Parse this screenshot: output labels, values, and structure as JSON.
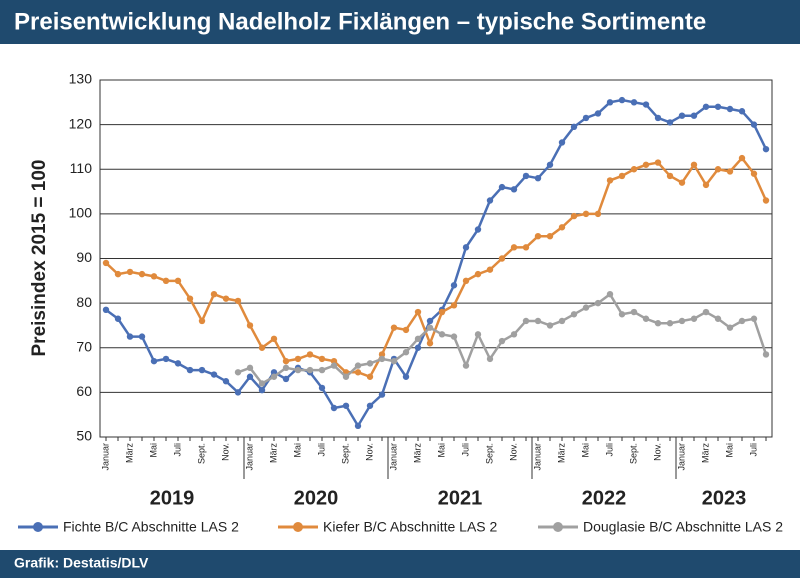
{
  "chart_data": {
    "type": "line",
    "title": "Preisentwicklung Nadelholz Fixlängen – typische Sortimente",
    "ylabel": "Preisindex 2015 = 100",
    "source": "Grafik: Destatis/DLV",
    "categories": [
      "Januar",
      null,
      "März",
      null,
      "Mai",
      null,
      "Juli",
      null,
      "Sept.",
      null,
      "Nov.",
      null,
      "Januar",
      null,
      "März",
      null,
      "Mai",
      null,
      "Juli",
      null,
      "Sept.",
      null,
      "Nov.",
      null,
      "Januar",
      null,
      "März",
      null,
      "Mai",
      null,
      "Juli",
      null,
      "Sept.",
      null,
      "Nov.",
      null,
      "Januar",
      null,
      "März",
      null,
      "Mai",
      null,
      "Juli",
      null,
      "Sept.",
      null,
      "Nov.",
      null,
      "Januar",
      null,
      "März",
      null,
      "Mai",
      null,
      "Juli",
      null
    ],
    "years": [
      "2019",
      "2020",
      "2021",
      "2022",
      "2023"
    ],
    "series": [
      {
        "name": "Fichte B/C Abschnitte LAS 2",
        "color": "#4a6fb5",
        "values": [
          78.5,
          76.5,
          72.5,
          72.5,
          67,
          67.5,
          66.5,
          65,
          65,
          64,
          62.5,
          60,
          63.5,
          60.5,
          64.5,
          63,
          65.5,
          64.5,
          61,
          56.5,
          57,
          52.5,
          57,
          59.5,
          67.5,
          63.5,
          70,
          76,
          78.5,
          84,
          92.5,
          96.5,
          103,
          106,
          105.5,
          108.5,
          108,
          111,
          116,
          119.5,
          121.5,
          122.5,
          125,
          125.5,
          125,
          124.5,
          121.5,
          120.5,
          122,
          122,
          124,
          124,
          123.5,
          123,
          120,
          114.5
        ]
      },
      {
        "name": "Kiefer B/C Abschnitte LAS 2",
        "color": "#e08a3c",
        "values": [
          89,
          86.5,
          87,
          86.5,
          86,
          85,
          85,
          81,
          76,
          82,
          81,
          80.5,
          75,
          70,
          72,
          67,
          67.5,
          68.5,
          67.5,
          67,
          64.5,
          64.5,
          63.5,
          68.5,
          74.5,
          74,
          78,
          71,
          78,
          79.5,
          85,
          86.5,
          87.5,
          90,
          92.5,
          92.5,
          95,
          95,
          97,
          99.5,
          100,
          100,
          107.5,
          108.5,
          110,
          111,
          111.5,
          108.5,
          107,
          111,
          106.5,
          110,
          109.5,
          112.5,
          109,
          103
        ]
      },
      {
        "name": "Douglasie B/C Abschnitte LAS 2",
        "color": "#a0a0a0",
        "values": [
          null,
          null,
          null,
          null,
          null,
          null,
          null,
          null,
          null,
          null,
          null,
          64.5,
          65.5,
          62,
          63.5,
          65.5,
          65,
          65,
          65,
          66,
          63.5,
          66,
          66.5,
          67.5,
          67,
          69,
          72,
          74.5,
          73,
          72.5,
          66,
          73,
          67.5,
          71.5,
          73,
          76,
          76,
          75,
          76,
          77.5,
          79,
          80,
          82,
          77.5,
          78,
          76.5,
          75.5,
          75.5,
          76,
          76.5,
          78,
          76.5,
          74.5,
          76,
          76.5,
          68.5
        ]
      }
    ],
    "ylim": [
      50,
      130
    ],
    "yticks": [
      50,
      60,
      70,
      80,
      90,
      100,
      110,
      120,
      130
    ],
    "grid": true
  }
}
